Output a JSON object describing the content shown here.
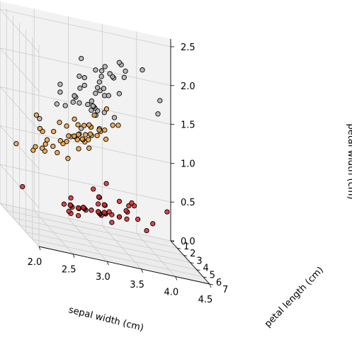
{
  "chart_data": {
    "type": "scatter",
    "projection": "3d",
    "title": "",
    "xlabel": "sepal width (cm)",
    "ylabel": "petal length (cm)",
    "zlabel": "petal width (cm)",
    "xlim": [
      2.0,
      4.5
    ],
    "ylim": [
      1,
      7
    ],
    "zlim": [
      0.0,
      2.6
    ],
    "x_ticks": [
      "2.0",
      "2.5",
      "3.0",
      "3.5",
      "4.0",
      "4.5"
    ],
    "y_ticks": [
      "1",
      "2",
      "3",
      "4",
      "5",
      "6",
      "7"
    ],
    "z_ticks": [
      "0.0",
      "0.5",
      "1.0",
      "1.5",
      "2.0",
      "2.5"
    ],
    "grid": true,
    "legend": "none",
    "colors": {
      "pane_back": "#f2f2f2",
      "pane_side": "#e6e6e6",
      "pane_floor": "#ececec",
      "grid": "#cccccc",
      "marker_edge": "#000000"
    },
    "series": [
      {
        "color": "#d62728",
        "points": [
          [
            3.5,
            1.4,
            0.2
          ],
          [
            3.0,
            1.4,
            0.2
          ],
          [
            3.2,
            1.3,
            0.2
          ],
          [
            3.1,
            1.5,
            0.2
          ],
          [
            3.6,
            1.4,
            0.2
          ],
          [
            3.9,
            1.7,
            0.4
          ],
          [
            3.4,
            1.4,
            0.3
          ],
          [
            3.4,
            1.5,
            0.2
          ],
          [
            2.9,
            1.4,
            0.2
          ],
          [
            3.1,
            1.5,
            0.1
          ],
          [
            3.7,
            1.5,
            0.2
          ],
          [
            3.4,
            1.6,
            0.2
          ],
          [
            3.0,
            1.4,
            0.1
          ],
          [
            3.0,
            1.1,
            0.1
          ],
          [
            4.0,
            1.2,
            0.2
          ],
          [
            4.4,
            1.5,
            0.4
          ],
          [
            3.9,
            1.3,
            0.4
          ],
          [
            3.5,
            1.4,
            0.3
          ],
          [
            3.8,
            1.7,
            0.3
          ],
          [
            3.8,
            1.5,
            0.3
          ],
          [
            3.4,
            1.7,
            0.2
          ],
          [
            3.7,
            1.5,
            0.4
          ],
          [
            3.6,
            1.0,
            0.2
          ],
          [
            3.3,
            1.7,
            0.5
          ],
          [
            3.4,
            1.9,
            0.2
          ],
          [
            3.0,
            1.6,
            0.2
          ],
          [
            3.4,
            1.6,
            0.4
          ],
          [
            3.5,
            1.5,
            0.2
          ],
          [
            3.4,
            1.4,
            0.2
          ],
          [
            3.2,
            1.6,
            0.2
          ],
          [
            3.1,
            1.6,
            0.2
          ],
          [
            3.4,
            1.5,
            0.4
          ],
          [
            4.1,
            1.5,
            0.1
          ],
          [
            4.2,
            1.4,
            0.2
          ],
          [
            3.1,
            1.5,
            0.2
          ],
          [
            3.2,
            1.2,
            0.2
          ],
          [
            3.5,
            1.3,
            0.2
          ],
          [
            3.6,
            1.4,
            0.1
          ],
          [
            3.0,
            1.3,
            0.2
          ],
          [
            3.4,
            1.5,
            0.2
          ],
          [
            3.5,
            1.3,
            0.3
          ],
          [
            2.3,
            1.3,
            0.3
          ],
          [
            3.2,
            1.3,
            0.2
          ],
          [
            3.5,
            1.6,
            0.6
          ],
          [
            3.8,
            1.9,
            0.4
          ],
          [
            3.0,
            1.4,
            0.3
          ],
          [
            3.8,
            1.6,
            0.2
          ],
          [
            3.2,
            1.4,
            0.2
          ],
          [
            3.7,
            1.5,
            0.2
          ],
          [
            3.3,
            1.4,
            0.2
          ]
        ]
      },
      {
        "color": "#f0a040",
        "points": [
          [
            3.2,
            4.7,
            1.4
          ],
          [
            3.2,
            4.5,
            1.5
          ],
          [
            3.1,
            4.9,
            1.5
          ],
          [
            2.3,
            4.0,
            1.3
          ],
          [
            2.8,
            4.6,
            1.5
          ],
          [
            2.8,
            4.5,
            1.3
          ],
          [
            3.3,
            4.7,
            1.6
          ],
          [
            2.4,
            3.3,
            1.0
          ],
          [
            2.9,
            4.6,
            1.3
          ],
          [
            2.7,
            3.9,
            1.4
          ],
          [
            2.0,
            3.5,
            1.0
          ],
          [
            3.0,
            4.2,
            1.5
          ],
          [
            2.2,
            4.0,
            1.0
          ],
          [
            2.9,
            4.7,
            1.4
          ],
          [
            2.9,
            3.6,
            1.3
          ],
          [
            3.1,
            4.4,
            1.4
          ],
          [
            3.0,
            4.5,
            1.5
          ],
          [
            2.7,
            4.1,
            1.0
          ],
          [
            2.2,
            4.5,
            1.5
          ],
          [
            2.5,
            3.9,
            1.1
          ],
          [
            3.2,
            4.8,
            1.8
          ],
          [
            2.8,
            4.0,
            1.3
          ],
          [
            2.5,
            4.9,
            1.5
          ],
          [
            2.8,
            4.7,
            1.2
          ],
          [
            2.9,
            4.3,
            1.3
          ],
          [
            3.0,
            4.4,
            1.4
          ],
          [
            2.8,
            4.8,
            1.4
          ],
          [
            3.0,
            5.0,
            1.7
          ],
          [
            2.9,
            4.5,
            1.5
          ],
          [
            2.6,
            3.5,
            1.0
          ],
          [
            2.4,
            3.8,
            1.1
          ],
          [
            2.4,
            3.7,
            1.0
          ],
          [
            2.7,
            3.9,
            1.2
          ],
          [
            2.7,
            5.1,
            1.6
          ],
          [
            3.0,
            4.5,
            1.5
          ],
          [
            3.4,
            4.5,
            1.6
          ],
          [
            3.1,
            4.7,
            1.5
          ],
          [
            2.3,
            4.4,
            1.3
          ],
          [
            3.0,
            4.1,
            1.3
          ],
          [
            2.5,
            4.0,
            1.3
          ],
          [
            2.6,
            4.4,
            1.2
          ],
          [
            3.0,
            4.6,
            1.4
          ],
          [
            2.6,
            4.0,
            1.2
          ],
          [
            2.3,
            3.3,
            1.0
          ],
          [
            2.7,
            4.2,
            1.3
          ],
          [
            3.0,
            4.2,
            1.2
          ],
          [
            2.9,
            4.2,
            1.3
          ],
          [
            2.9,
            4.3,
            1.3
          ],
          [
            2.5,
            3.0,
            1.1
          ],
          [
            2.8,
            4.1,
            1.3
          ]
        ]
      },
      {
        "color": "#b0b0b0",
        "points": [
          [
            3.3,
            6.0,
            2.5
          ],
          [
            2.7,
            5.1,
            1.9
          ],
          [
            3.0,
            5.9,
            2.1
          ],
          [
            2.9,
            5.6,
            1.8
          ],
          [
            3.0,
            5.8,
            2.2
          ],
          [
            3.0,
            6.6,
            2.1
          ],
          [
            2.5,
            4.5,
            1.7
          ],
          [
            2.9,
            6.3,
            1.8
          ],
          [
            2.5,
            5.8,
            1.8
          ],
          [
            3.6,
            6.1,
            2.5
          ],
          [
            3.2,
            5.1,
            2.0
          ],
          [
            2.7,
            5.3,
            1.9
          ],
          [
            3.0,
            5.5,
            2.1
          ],
          [
            2.5,
            5.0,
            2.0
          ],
          [
            2.8,
            5.1,
            2.4
          ],
          [
            3.2,
            5.3,
            2.3
          ],
          [
            3.0,
            5.5,
            1.8
          ],
          [
            3.8,
            6.7,
            2.2
          ],
          [
            2.6,
            6.9,
            2.3
          ],
          [
            2.2,
            5.0,
            1.5
          ],
          [
            3.2,
            5.7,
            2.3
          ],
          [
            2.8,
            4.9,
            2.0
          ],
          [
            2.8,
            6.7,
            2.0
          ],
          [
            2.7,
            4.9,
            1.8
          ],
          [
            3.3,
            5.7,
            2.1
          ],
          [
            3.2,
            6.0,
            1.8
          ],
          [
            2.8,
            4.8,
            1.8
          ],
          [
            3.0,
            4.9,
            1.8
          ],
          [
            2.8,
            5.6,
            2.1
          ],
          [
            3.0,
            5.8,
            1.6
          ],
          [
            2.8,
            6.1,
            1.9
          ],
          [
            3.8,
            6.4,
            2.0
          ],
          [
            2.8,
            5.6,
            2.2
          ],
          [
            2.8,
            5.1,
            1.5
          ],
          [
            2.6,
            5.6,
            1.4
          ],
          [
            3.0,
            6.1,
            2.3
          ],
          [
            3.4,
            5.6,
            2.4
          ],
          [
            3.1,
            5.5,
            1.8
          ],
          [
            3.0,
            4.8,
            1.8
          ],
          [
            3.1,
            5.4,
            2.1
          ],
          [
            3.1,
            5.6,
            2.4
          ],
          [
            3.1,
            5.1,
            2.3
          ],
          [
            2.7,
            5.1,
            1.9
          ],
          [
            3.2,
            5.9,
            2.3
          ],
          [
            3.3,
            5.7,
            2.5
          ],
          [
            3.0,
            5.2,
            2.3
          ],
          [
            2.5,
            5.0,
            1.9
          ],
          [
            3.0,
            5.2,
            2.0
          ],
          [
            3.4,
            5.4,
            2.3
          ],
          [
            3.0,
            5.1,
            1.8
          ]
        ]
      }
    ]
  }
}
